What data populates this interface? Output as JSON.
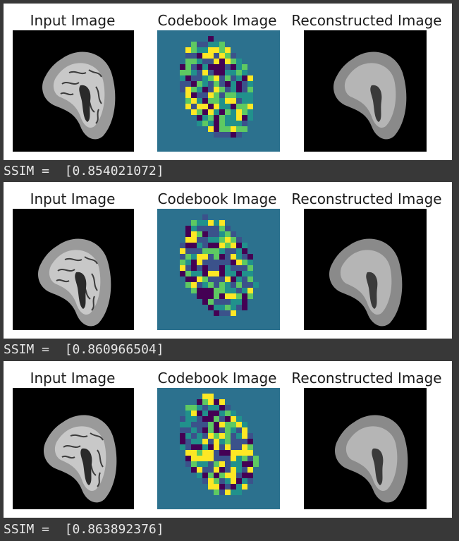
{
  "results": [
    {
      "titles": {
        "input": "Input Image",
        "codebook": "Codebook Image",
        "reconstructed": "Reconstructed Image"
      },
      "ssim_text": "SSIM =  [0.854021072]"
    },
    {
      "titles": {
        "input": "Input Image",
        "codebook": "Codebook Image",
        "reconstructed": "Reconstructed Image"
      },
      "ssim_text": "SSIM =  [0.860966504]"
    },
    {
      "titles": {
        "input": "Input Image",
        "codebook": "Codebook Image",
        "reconstructed": "Reconstructed Image"
      },
      "ssim_text": "SSIM =  [0.863892376]"
    }
  ],
  "colors": {
    "output_background": "#383838",
    "figure_background": "#ffffff",
    "codebook_background": "#2c718e",
    "codebook_palette": [
      "#440154",
      "#3b528b",
      "#21918c",
      "#5ec962",
      "#fde725"
    ],
    "ssim_text_color": "#e6e6e6"
  }
}
